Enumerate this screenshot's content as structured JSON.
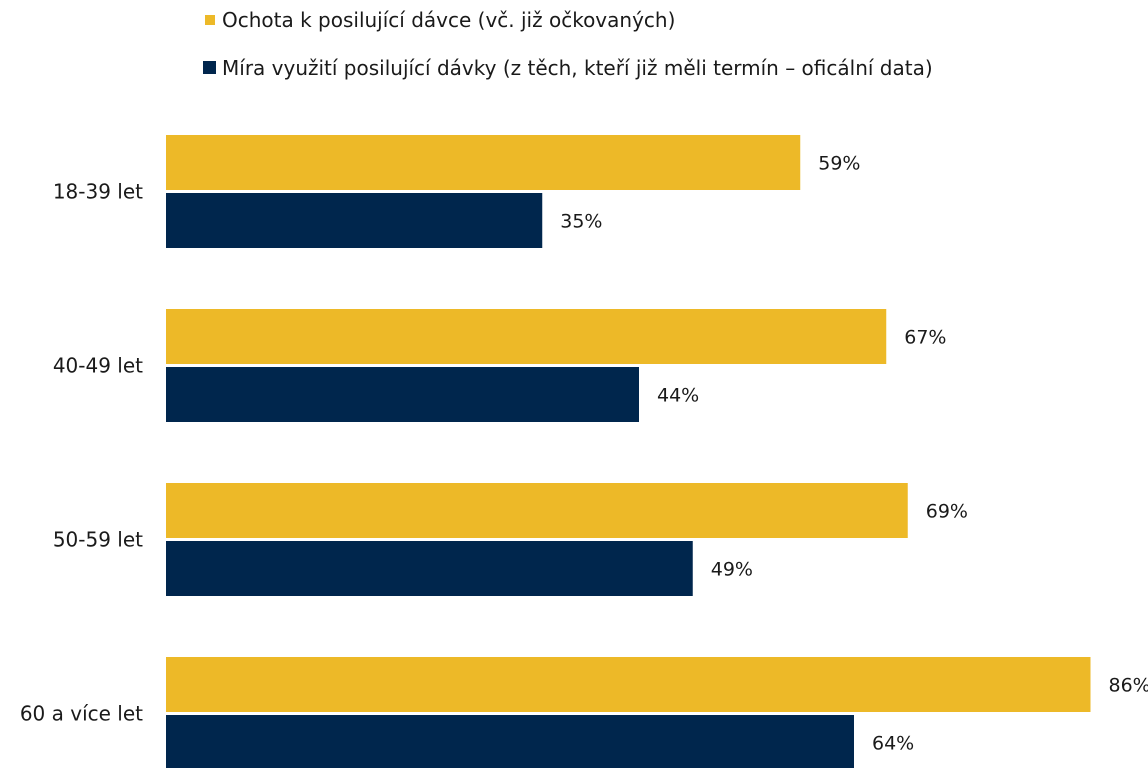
{
  "chart_data": {
    "type": "bar",
    "orientation": "horizontal",
    "categories": [
      "18-39 let",
      "40-49 let",
      "50-59 let",
      "60 a více let"
    ],
    "series": [
      {
        "name": "Ochota k posilující dávce (vč. již očkovaných)",
        "values": [
          59,
          67,
          69,
          86
        ],
        "labels": [
          "59%",
          "67%",
          "69%",
          "86%"
        ],
        "color": "#EDB928"
      },
      {
        "name": "Míra využití posilující dávky (z těch, kteří již měli termín – oficální data)",
        "values": [
          35,
          44,
          49,
          64
        ],
        "labels": [
          "35%",
          "44%",
          "49%",
          "64%"
        ],
        "color": "#00264D"
      }
    ],
    "xlim": [
      0,
      100
    ],
    "grid": false,
    "legend_position": "top"
  }
}
